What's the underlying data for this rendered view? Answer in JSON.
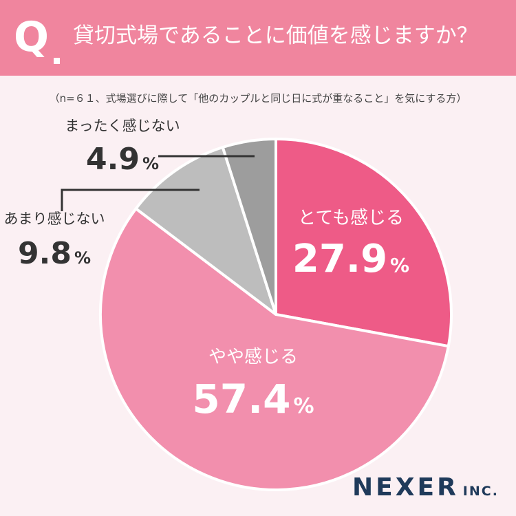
{
  "header": {
    "q_label": "Q",
    "question": "貸切式場であることに価値を感じますか？",
    "bg_color": "#f0859e"
  },
  "note": "（n=６１、式場選びに際して「他のカップルと同じ日に式が重なること」を気にする方）",
  "chart_data": {
    "type": "pie",
    "title": "",
    "start": "12 o'clock, clockwise",
    "slices": [
      {
        "label": "とても感じる",
        "value": 27.9,
        "display": "27.9",
        "unit": "%",
        "color": "#ee5b87",
        "label_color": "#ffffff"
      },
      {
        "label": "やや感じる",
        "value": 57.4,
        "display": "57.4",
        "unit": "%",
        "color": "#f28fad",
        "label_color": "#ffffff"
      },
      {
        "label": "あまり感じない",
        "value": 9.8,
        "display": "9.8",
        "unit": "%",
        "color": "#bdbdbd",
        "label_color": "#333333"
      },
      {
        "label": "まったく感じない",
        "value": 4.9,
        "display": "4.9",
        "unit": "%",
        "color": "#9d9d9d",
        "label_color": "#333333"
      }
    ]
  },
  "logo": {
    "main": "NEXER",
    "sub": "INC."
  }
}
